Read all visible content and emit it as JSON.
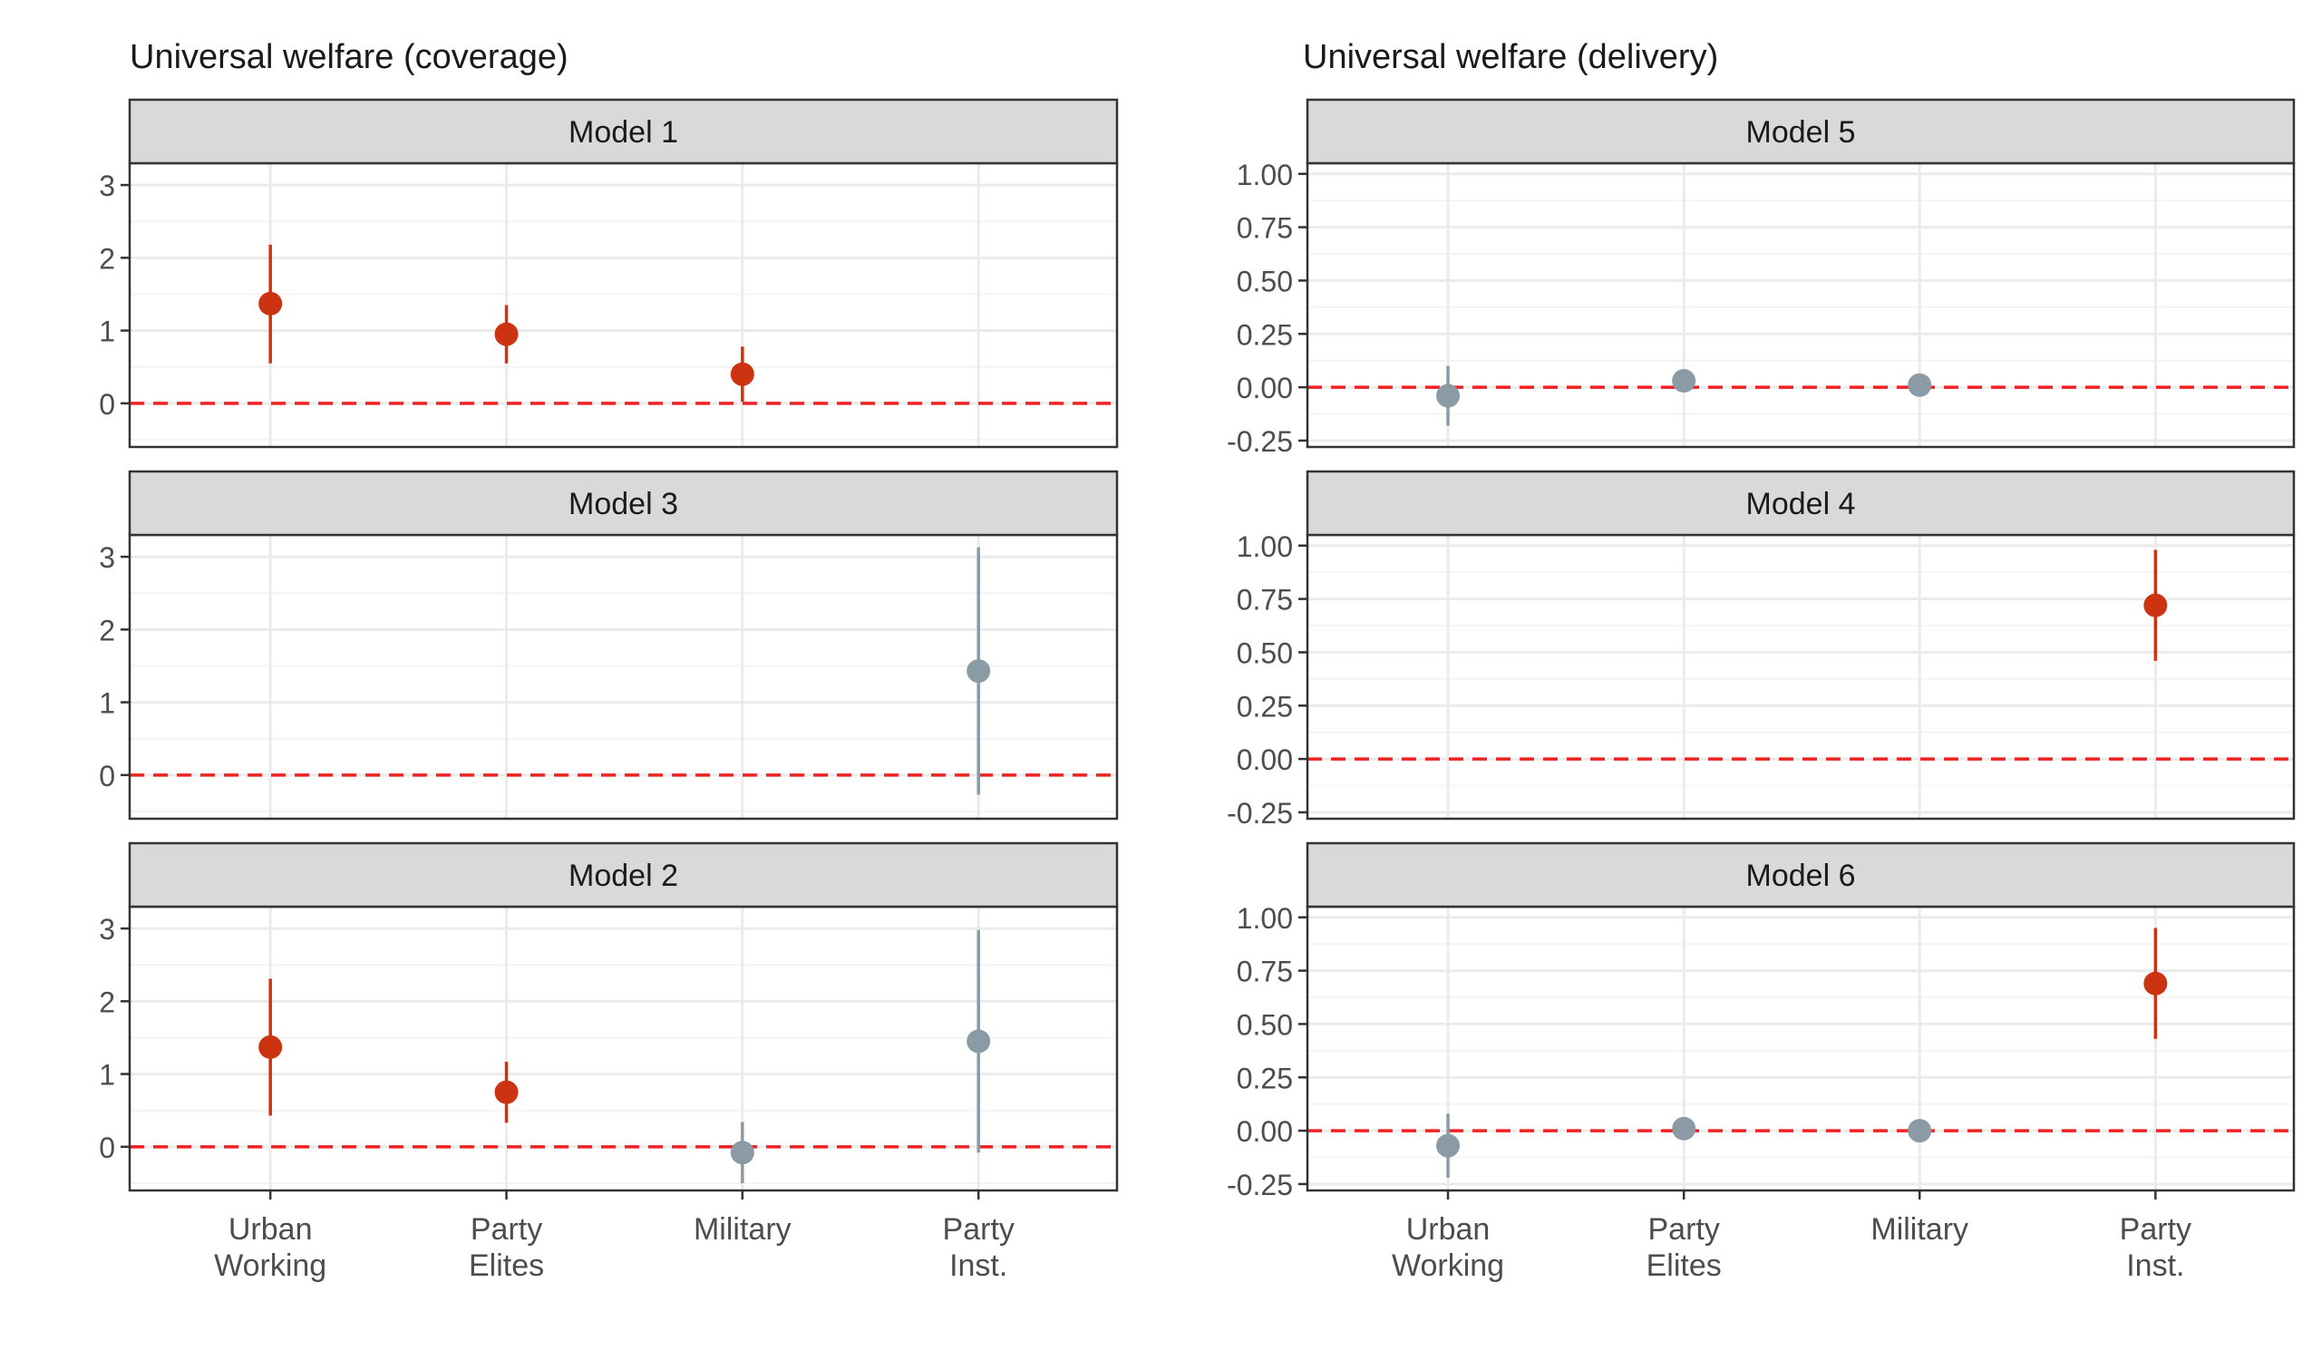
{
  "colors": {
    "significant": "#cc3311",
    "not_significant": "#8a9ba5",
    "reference_line": "#ee2222",
    "strip_fill": "#d9d9d9",
    "grid_major": "#ebebeb",
    "grid_minor": "#f4f4f4"
  },
  "chart_data": [
    {
      "type": "scatter",
      "title": "Universal welfare (coverage)",
      "categories": [
        "Urban\nWorking",
        "Party\nElites",
        "Military",
        "Party\nInst."
      ],
      "ylim": [
        -0.6,
        3.3
      ],
      "yticks": [
        0,
        1,
        2,
        3
      ],
      "ytick_labels": [
        "0",
        "1",
        "2",
        "3"
      ],
      "reference_line": 0,
      "grid": true,
      "panels": [
        {
          "strip": "Model 1",
          "points": [
            {
              "category": "Urban\nWorking",
              "estimate": 1.37,
              "lower": 0.55,
              "upper": 2.18,
              "significant": true
            },
            {
              "category": "Party\nElites",
              "estimate": 0.95,
              "lower": 0.55,
              "upper": 1.35,
              "significant": true
            },
            {
              "category": "Military",
              "estimate": 0.4,
              "lower": 0.02,
              "upper": 0.78,
              "significant": true
            }
          ]
        },
        {
          "strip": "Model 3",
          "points": [
            {
              "category": "Party\nInst.",
              "estimate": 1.43,
              "lower": -0.27,
              "upper": 3.13,
              "significant": false
            }
          ]
        },
        {
          "strip": "Model 2",
          "points": [
            {
              "category": "Urban\nWorking",
              "estimate": 1.37,
              "lower": 0.43,
              "upper": 2.31,
              "significant": true
            },
            {
              "category": "Party\nElites",
              "estimate": 0.75,
              "lower": 0.33,
              "upper": 1.17,
              "significant": true
            },
            {
              "category": "Military",
              "estimate": -0.08,
              "lower": -0.5,
              "upper": 0.34,
              "significant": false
            },
            {
              "category": "Party\nInst.",
              "estimate": 1.45,
              "lower": -0.08,
              "upper": 2.98,
              "significant": false
            }
          ]
        }
      ]
    },
    {
      "type": "scatter",
      "title": "Universal welfare (delivery)",
      "categories": [
        "Urban\nWorking",
        "Party\nElites",
        "Military",
        "Party\nInst."
      ],
      "ylim": [
        -0.28,
        1.05
      ],
      "yticks": [
        -0.25,
        0,
        0.25,
        0.5,
        0.75,
        1
      ],
      "ytick_labels": [
        "-0.25",
        "0.00",
        "0.25",
        "0.50",
        "0.75",
        "1.00"
      ],
      "reference_line": 0,
      "grid": true,
      "panels": [
        {
          "strip": "Model 5",
          "points": [
            {
              "category": "Urban\nWorking",
              "estimate": -0.04,
              "lower": -0.18,
              "upper": 0.1,
              "significant": false
            },
            {
              "category": "Party\nElites",
              "estimate": 0.03,
              "lower": 0.0,
              "upper": 0.06,
              "significant": false
            },
            {
              "category": "Military",
              "estimate": 0.01,
              "lower": -0.01,
              "upper": 0.03,
              "significant": false
            }
          ]
        },
        {
          "strip": "Model 4",
          "points": [
            {
              "category": "Party\nInst.",
              "estimate": 0.72,
              "lower": 0.46,
              "upper": 0.98,
              "significant": true
            }
          ]
        },
        {
          "strip": "Model 6",
          "points": [
            {
              "category": "Urban\nWorking",
              "estimate": -0.07,
              "lower": -0.22,
              "upper": 0.08,
              "significant": false
            },
            {
              "category": "Party\nElites",
              "estimate": 0.01,
              "lower": -0.01,
              "upper": 0.03,
              "significant": false
            },
            {
              "category": "Military",
              "estimate": 0.0,
              "lower": -0.02,
              "upper": 0.02,
              "significant": false
            },
            {
              "category": "Party\nInst.",
              "estimate": 0.69,
              "lower": 0.43,
              "upper": 0.95,
              "significant": true
            }
          ]
        }
      ]
    }
  ]
}
